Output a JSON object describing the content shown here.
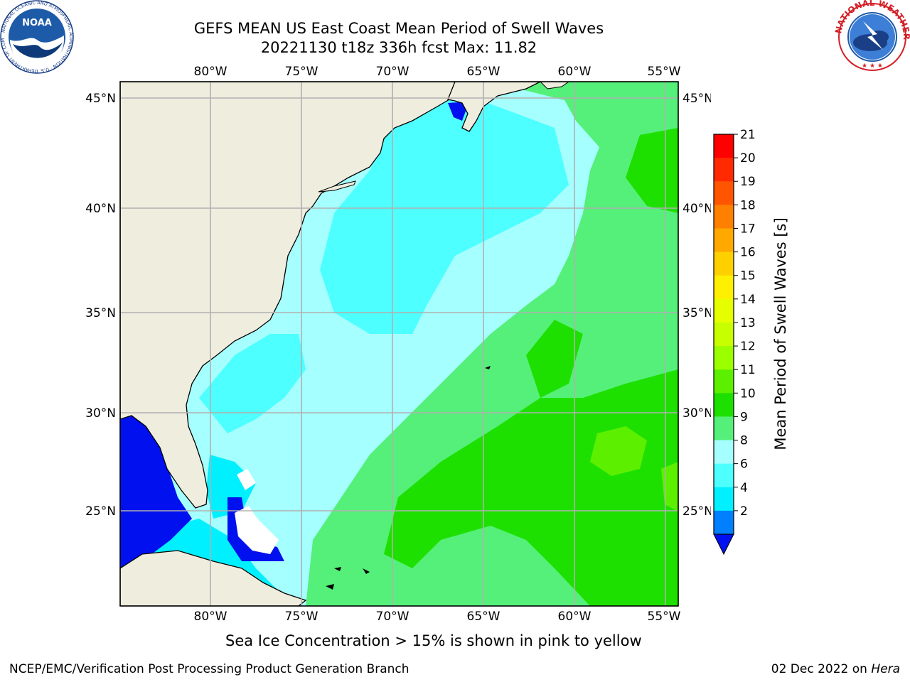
{
  "title": {
    "line1": "GEFS MEAN US East Coast Mean Period of Swell Waves",
    "line2": "20221130 t18z 336h fcst   Max: 11.82"
  },
  "map": {
    "lon_labels_top": [
      "80°W",
      "75°W",
      "70°W",
      "65°W",
      "60°W",
      "55°W"
    ],
    "lon_labels_bottom": [
      "80°W",
      "75°W",
      "70°W",
      "65°W",
      "60°W",
      "55°W"
    ],
    "lat_labels_left": [
      "45°N",
      "40°N",
      "35°N",
      "30°N",
      "25°N"
    ],
    "lat_labels_right": [
      "45°N",
      "40°N",
      "35°N",
      "30°N",
      "25°N"
    ],
    "land_color": "#efedde",
    "grid_color": "#b0b0b0"
  },
  "colorbar": {
    "title": "Mean Period of Swell Waves [s]",
    "ticks": [
      "21",
      "20",
      "19",
      "18",
      "17",
      "16",
      "15",
      "14",
      "13",
      "12",
      "11",
      "10",
      "9",
      "8",
      "6",
      "4",
      "2"
    ],
    "colors": [
      "#ff0000",
      "#ff2a00",
      "#ff5500",
      "#ff8000",
      "#ffa800",
      "#ffd000",
      "#ffef00",
      "#e6ff00",
      "#c7ff00",
      "#9cff00",
      "#5cf000",
      "#1ee000",
      "#55f07a",
      "#a6ffff",
      "#4dffff",
      "#00f0ff",
      "#0080ff"
    ],
    "under_color": "#0010ee"
  },
  "caption": "Sea Ice Concentration > 15% is shown in pink to yellow",
  "footer": {
    "left": "NCEP/EMC/Verification Post Processing Product Generation Branch",
    "right_prefix": "02 Dec 2022 on ",
    "right_host": "Hera"
  },
  "logos": {
    "noaa": "NOAA",
    "noaa_ring": "NATIONAL OCEANIC AND ATMOSPHERIC ADMINISTRATION · U.S. DEPARTMENT OF COMMERCE",
    "nws_ring": "NATIONAL WEATHER SERVICE"
  }
}
